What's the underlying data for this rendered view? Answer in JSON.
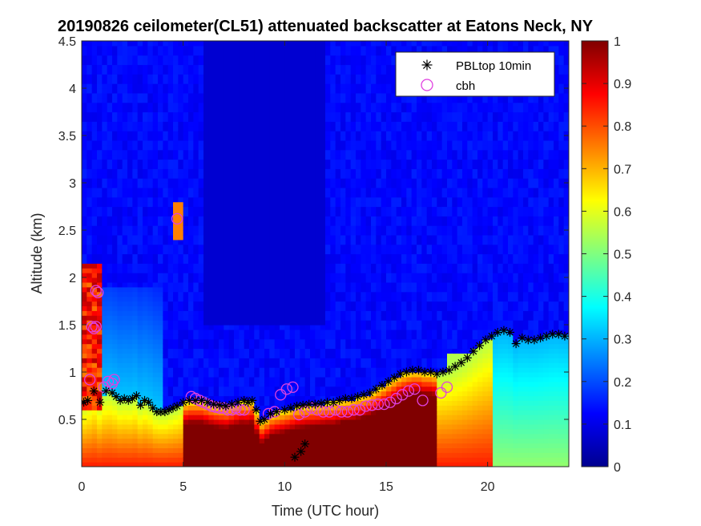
{
  "chart_data": {
    "type": "heatmap",
    "title": "20190826 ceilometer(CL51) attenuated backscatter at Eatons Neck, NY",
    "xlabel": "Time (UTC hour)",
    "ylabel": "Altitude (km)",
    "xlim": [
      0,
      24
    ],
    "ylim": [
      0,
      4.5
    ],
    "xticks": [
      "0",
      "5",
      "10",
      "15",
      "20"
    ],
    "yticks": [
      "0.5",
      "1",
      "1.5",
      "2",
      "2.5",
      "3",
      "3.5",
      "4",
      "4.5"
    ],
    "colorbar": {
      "range": [
        0,
        1
      ],
      "ticks": [
        "0",
        "0.1",
        "0.2",
        "0.3",
        "0.4",
        "0.5",
        "0.6",
        "0.7",
        "0.8",
        "0.9",
        "1"
      ],
      "colormap": "jet"
    },
    "legend": {
      "placement": "top-right"
    },
    "series": [
      {
        "name": "PBLtop 10min",
        "marker": "asterisk",
        "color": "#000000",
        "x": [
          0.1,
          0.3,
          0.6,
          0.9,
          1.2,
          1.5,
          1.7,
          1.9,
          2.1,
          2.3,
          2.5,
          2.7,
          2.9,
          3.1,
          3.3,
          3.5,
          3.7,
          3.9,
          4.1,
          4.3,
          4.5,
          4.7,
          5.0,
          5.3,
          5.6,
          5.9,
          6.2,
          6.5,
          6.8,
          7.1,
          7.4,
          7.7,
          8.0,
          8.2,
          8.4,
          8.6,
          8.8,
          9.0,
          9.3,
          9.6,
          10.0,
          10.3,
          10.6,
          10.9,
          11.2,
          11.5,
          11.8,
          12.1,
          12.4,
          12.7,
          13.0,
          13.3,
          13.6,
          13.9,
          14.2,
          14.5,
          14.8,
          15.1,
          15.4,
          15.7,
          16.0,
          16.3,
          16.6,
          16.9,
          17.2,
          17.5,
          17.8,
          18.1,
          18.4,
          18.7,
          19.0,
          19.3,
          19.6,
          19.9,
          20.2,
          20.5,
          20.8,
          21.1,
          21.4,
          21.7,
          22.0,
          22.3,
          22.6,
          22.9,
          23.2,
          23.5,
          23.8,
          10.5,
          10.8,
          11.0
        ],
        "y": [
          0.68,
          0.7,
          0.8,
          0.68,
          0.8,
          0.78,
          0.74,
          0.7,
          0.72,
          0.7,
          0.72,
          0.75,
          0.65,
          0.7,
          0.68,
          0.62,
          0.58,
          0.58,
          0.58,
          0.6,
          0.62,
          0.64,
          0.68,
          0.7,
          0.7,
          0.7,
          0.68,
          0.66,
          0.65,
          0.64,
          0.66,
          0.68,
          0.7,
          0.68,
          0.7,
          0.6,
          0.48,
          0.5,
          0.56,
          0.58,
          0.6,
          0.62,
          0.64,
          0.65,
          0.66,
          0.66,
          0.67,
          0.68,
          0.68,
          0.7,
          0.72,
          0.72,
          0.74,
          0.76,
          0.78,
          0.82,
          0.86,
          0.9,
          0.94,
          0.98,
          1.0,
          1.02,
          1.02,
          1.0,
          1.0,
          0.98,
          1.0,
          1.02,
          1.06,
          1.1,
          1.15,
          1.22,
          1.28,
          1.34,
          1.38,
          1.42,
          1.44,
          1.42,
          1.3,
          1.36,
          1.34,
          1.34,
          1.36,
          1.38,
          1.4,
          1.4,
          1.38,
          0.1,
          0.16,
          0.24
        ]
      },
      {
        "name": "cbh",
        "marker": "circle",
        "color": "#e040e0",
        "x": [
          0.4,
          0.6,
          0.7,
          0.8,
          1.1,
          1.3,
          1.5,
          1.6,
          4.7,
          5.4,
          5.6,
          5.8,
          6.0,
          6.2,
          6.4,
          6.6,
          6.8,
          7.0,
          7.2,
          7.4,
          7.6,
          7.8,
          8.0,
          9.2,
          9.5,
          9.8,
          10.1,
          10.4,
          10.7,
          11.0,
          11.3,
          11.6,
          11.9,
          12.2,
          12.5,
          12.8,
          13.1,
          13.4,
          13.7,
          14.0,
          14.3,
          14.6,
          14.9,
          15.2,
          15.5,
          15.8,
          16.1,
          16.4,
          16.8,
          17.7,
          18.0,
          0.5,
          0.7
        ],
        "y": [
          0.92,
          1.46,
          1.48,
          1.84,
          0.84,
          0.9,
          0.88,
          0.92,
          2.62,
          0.74,
          0.72,
          0.7,
          0.68,
          0.66,
          0.64,
          0.63,
          0.62,
          0.62,
          0.6,
          0.6,
          0.62,
          0.6,
          0.6,
          0.56,
          0.58,
          0.76,
          0.82,
          0.84,
          0.55,
          0.58,
          0.62,
          0.6,
          0.58,
          0.58,
          0.6,
          0.58,
          0.58,
          0.6,
          0.6,
          0.64,
          0.65,
          0.66,
          0.66,
          0.68,
          0.72,
          0.76,
          0.8,
          0.82,
          0.7,
          0.78,
          0.84,
          1.48,
          1.86
        ]
      }
    ]
  }
}
